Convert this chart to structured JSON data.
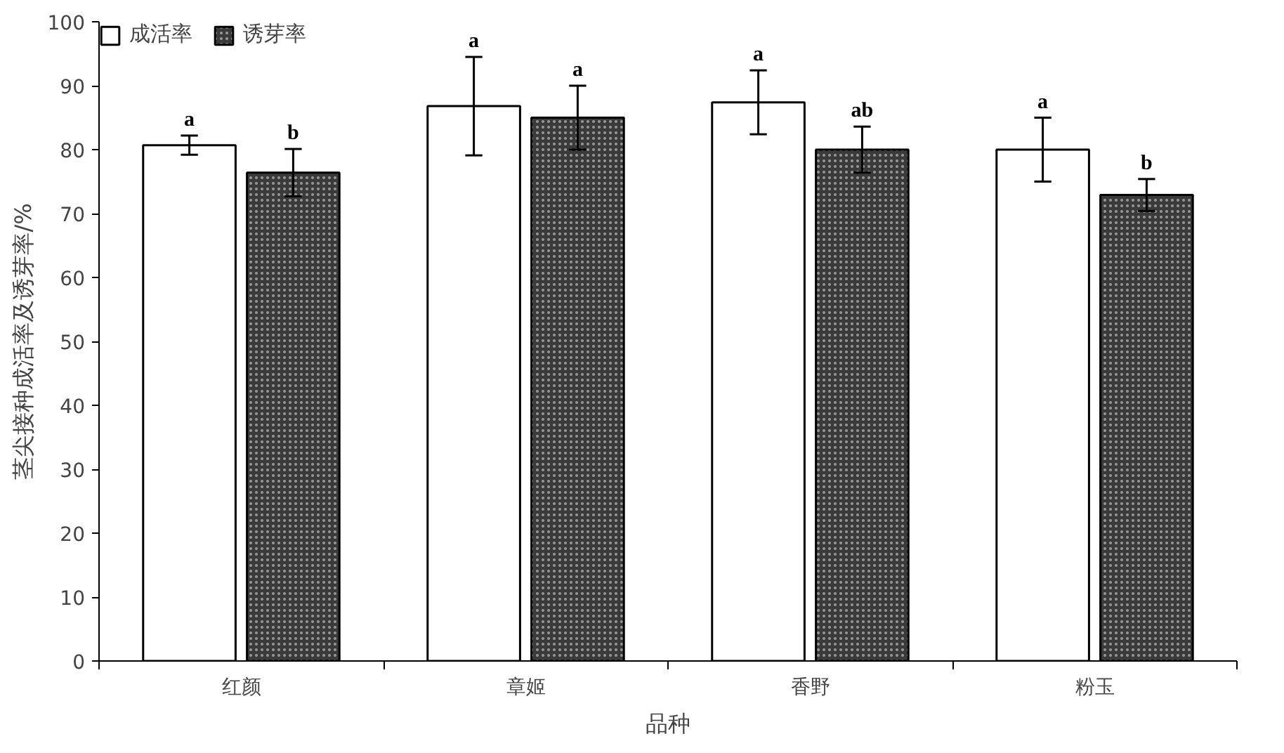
{
  "chart_data": {
    "type": "bar",
    "xlabel": "品种",
    "ylabel": "茎尖接种成活率及诱芽率/%",
    "categories": [
      "红颜",
      "章姬",
      "香野",
      "粉玉"
    ],
    "series": [
      {
        "name": "成活率",
        "color": "#ffffff",
        "values": [
          80.7,
          86.8,
          87.4,
          80.0
        ],
        "errors": [
          1.5,
          7.7,
          5.0,
          5.0
        ],
        "value_labels": [
          "a",
          "a",
          "a",
          "a"
        ]
      },
      {
        "name": "诱芽率",
        "color": "#3a3a3a",
        "values": [
          76.4,
          85.0,
          80.0,
          72.9
        ],
        "errors": [
          3.7,
          5.0,
          3.6,
          2.5
        ],
        "value_labels": [
          "b",
          "a",
          "ab",
          "b"
        ]
      }
    ],
    "ylim": [
      0,
      100
    ],
    "yticks": [
      0,
      10,
      20,
      30,
      40,
      50,
      60,
      70,
      80,
      90,
      100
    ],
    "grid": false,
    "legend": "top left"
  }
}
